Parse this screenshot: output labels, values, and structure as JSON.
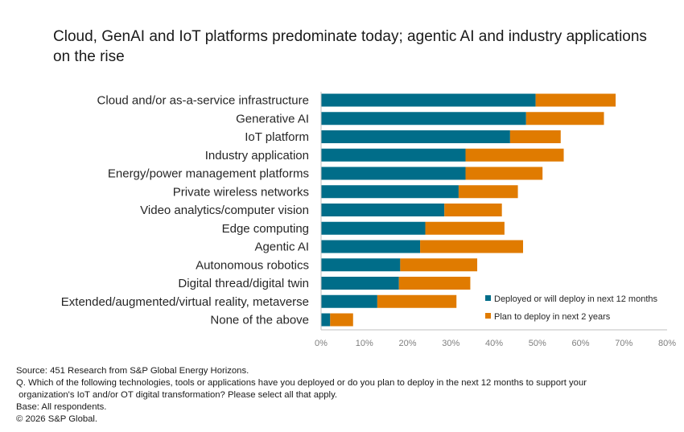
{
  "chart_data": {
    "type": "bar",
    "orientation": "horizontal",
    "stacked": true,
    "title": "Cloud, GenAI and IoT platforms predominate today; agentic AI and industry applications on the rise",
    "xlabel": "",
    "ylabel": "",
    "xlim": [
      0,
      80
    ],
    "xticks": [
      "0%",
      "10%",
      "20%",
      "30%",
      "40%",
      "50%",
      "60%",
      "70%",
      "80%"
    ],
    "grid": false,
    "legend_position": "bottom-right",
    "categories": [
      "Cloud and/or as-a-service infrastructure",
      "Generative AI",
      "IoT platform",
      "Industry application",
      "Energy/power management platforms",
      "Private wireless networks",
      "Video analytics/computer vision",
      "Edge computing",
      "Agentic AI",
      "Autonomous robotics",
      "Digital thread/digital twin",
      "Extended/augmented/virtual reality, metaverse",
      "None of the above"
    ],
    "series": [
      {
        "name": "Deployed or will deploy in next 12 months",
        "color": "#006d89",
        "values": [
          49.6,
          47.4,
          43.7,
          33.4,
          33.4,
          31.8,
          28.5,
          24.1,
          22.9,
          18.3,
          18.0,
          13.0,
          2.1
        ]
      },
      {
        "name": "Plan to deploy in next 2 years",
        "color": "#e07b00",
        "values": [
          18.5,
          18.0,
          11.7,
          22.7,
          17.8,
          13.7,
          13.3,
          18.3,
          23.8,
          17.8,
          16.5,
          18.3,
          5.3
        ]
      }
    ]
  },
  "footer": {
    "source": "Source: 451 Research from S&P Global Energy Horizons.",
    "question_line1": "Q. Which of the following technologies, tools or applications have you deployed or do you plan to deploy in the next 12 months to support your",
    "question_line2": " organization's IoT and/or OT digital transformation? Please select all that apply.",
    "base": "Base: All respondents.",
    "copyright": "© 2026 S&P Global."
  }
}
